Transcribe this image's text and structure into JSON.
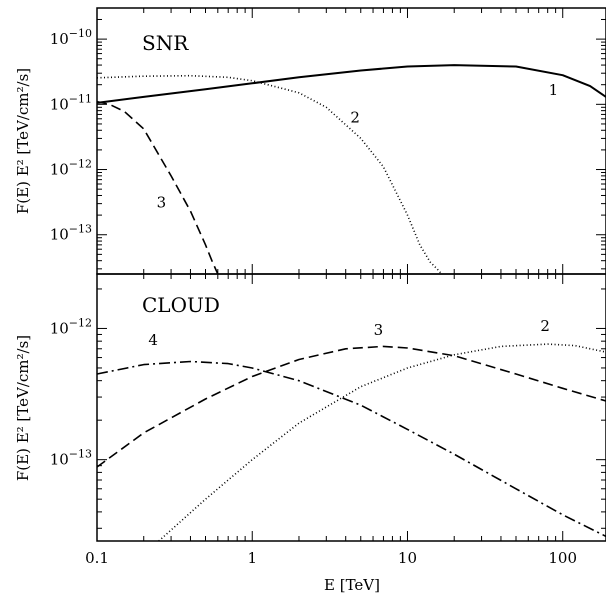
{
  "chart_data": [
    {
      "type": "line",
      "panel_title": "SNR",
      "xlabel": "",
      "ylabel": "F(E) E² [TeV/cm²/s]",
      "x_scale": "log",
      "y_scale": "log",
      "xlim": [
        0.1,
        190
      ],
      "ylim": [
        2.5e-14,
        3e-10
      ],
      "y_tick_labels": [
        {
          "value": 1e-13,
          "base": "10",
          "exp": "−13"
        },
        {
          "value": 1e-12,
          "base": "10",
          "exp": "−12"
        },
        {
          "value": 1e-11,
          "base": "10",
          "exp": "−11"
        },
        {
          "value": 1e-10,
          "base": "10",
          "exp": "−10"
        }
      ],
      "series": [
        {
          "name": "1",
          "style": "solid",
          "x": [
            0.1,
            0.2,
            0.5,
            1,
            2,
            5,
            10,
            20,
            50,
            100,
            150,
            190
          ],
          "y": [
            1.05e-11,
            1.3e-11,
            1.7e-11,
            2.1e-11,
            2.6e-11,
            3.3e-11,
            3.8e-11,
            4e-11,
            3.8e-11,
            2.8e-11,
            1.9e-11,
            1.3e-11
          ]
        },
        {
          "name": "2",
          "style": "dotted",
          "x": [
            0.1,
            0.2,
            0.4,
            0.7,
            1,
            2,
            3,
            5,
            7,
            10,
            12,
            14,
            15.5,
            16.6
          ],
          "y": [
            2.55e-11,
            2.7e-11,
            2.75e-11,
            2.6e-11,
            2.3e-11,
            1.5e-11,
            9e-12,
            3e-12,
            1.1e-12,
            2e-13,
            7e-14,
            3.8e-14,
            3e-14,
            2.5e-14
          ]
        },
        {
          "name": "3",
          "style": "dashed",
          "x": [
            0.1,
            0.12,
            0.15,
            0.2,
            0.3,
            0.4,
            0.5,
            0.55,
            0.6
          ],
          "y": [
            1.1e-11,
            1e-11,
            7.8e-12,
            4.2e-12,
            8e-13,
            2.3e-13,
            7e-14,
            4e-14,
            2.5e-14
          ]
        }
      ],
      "labels": [
        {
          "text": "1",
          "x": 87,
          "y": 1.4e-11
        },
        {
          "text": "2",
          "x": 4.6,
          "y": 5.3e-12
        },
        {
          "text": "3",
          "x": 0.26,
          "y": 2.6e-13
        }
      ]
    },
    {
      "type": "line",
      "panel_title": "CLOUD",
      "xlabel": "E [TeV]",
      "ylabel": "F(E) E² [TeV/cm²/s]",
      "x_scale": "log",
      "y_scale": "log",
      "xlim": [
        0.1,
        190
      ],
      "ylim": [
        2.4e-14,
        2.6e-12
      ],
      "x_tick_labels": [
        "0.1",
        "1",
        "10",
        "100"
      ],
      "y_tick_labels": [
        {
          "value": 1e-13,
          "base": "10",
          "exp": "−13"
        },
        {
          "value": 1e-12,
          "base": "10",
          "exp": "−12"
        }
      ],
      "series": [
        {
          "name": "2",
          "style": "dotted",
          "x": [
            0.25,
            0.5,
            1,
            2,
            5,
            10,
            20,
            40,
            80,
            120,
            190
          ],
          "y": [
            2.4e-14,
            5e-14,
            1e-13,
            1.9e-13,
            3.6e-13,
            5e-13,
            6.3e-13,
            7.3e-13,
            7.6e-13,
            7.4e-13,
            6.6e-13
          ]
        },
        {
          "name": "3",
          "style": "dashed",
          "x": [
            0.1,
            0.2,
            0.5,
            1,
            2,
            4,
            7,
            10,
            20,
            50,
            100,
            190
          ],
          "y": [
            8.8e-14,
            1.6e-13,
            2.9e-13,
            4.3e-13,
            5.8e-13,
            7e-13,
            7.3e-13,
            7.1e-13,
            6.2e-13,
            4.5e-13,
            3.5e-13,
            2.8e-13
          ]
        },
        {
          "name": "4",
          "style": "dashdot",
          "x": [
            0.1,
            0.2,
            0.4,
            0.7,
            1,
            2,
            5,
            10,
            20,
            50,
            100,
            190
          ],
          "y": [
            4.5e-13,
            5.3e-13,
            5.6e-13,
            5.4e-13,
            5e-13,
            4e-13,
            2.6e-13,
            1.7e-13,
            1.1e-13,
            6e-14,
            3.8e-14,
            2.6e-14
          ]
        }
      ],
      "labels": [
        {
          "text": "4",
          "x": 0.23,
          "y": 7.5e-13
        },
        {
          "text": "3",
          "x": 6.5,
          "y": 8.9e-13
        },
        {
          "text": "2",
          "x": 77,
          "y": 9.6e-13
        }
      ]
    }
  ]
}
